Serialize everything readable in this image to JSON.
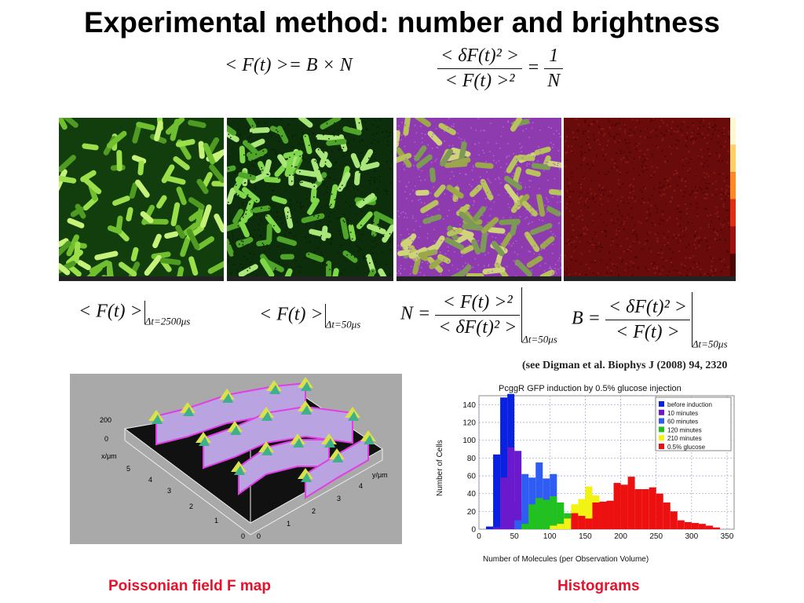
{
  "title": "Experimental method: number and brightness",
  "equations": {
    "eq1": {
      "lhs": "< F(t) >",
      "rhs": "= B × N"
    },
    "eq2": {
      "num": "< δF(t)² >",
      "den": "< F(t) >²",
      "eq": "=",
      "rnum": "1",
      "rden": "N"
    },
    "eq3": {
      "main": "< F(t) >",
      "sub": "Δt=2500μs"
    },
    "eq4": {
      "main": "< F(t) >",
      "sub": "Δt=50μs"
    },
    "eq5": {
      "lhs": "N =",
      "num": "< F(t) >²",
      "den": "< δF(t)² >",
      "sub": "Δt=50μs"
    },
    "eq6": {
      "lhs": "B =",
      "num": "< δF(t)² >",
      "den": "< F(t) >",
      "sub": "Δt=50μs"
    }
  },
  "reference": "(see Digman et al. Biophys J (2008) 94, 2320",
  "map3d": {
    "z_ticks": [
      "200",
      "0"
    ],
    "x_label": "x/μm",
    "x_ticks": [
      "5",
      "4",
      "3",
      "2",
      "1",
      "0"
    ],
    "y_label": "y/μm",
    "y_ticks": [
      "4",
      "3",
      "2",
      "1",
      "0"
    ]
  },
  "captions": {
    "left": "Poissonian field F map",
    "right": "Histograms"
  },
  "colors": {
    "caption": "#e8102a",
    "before": "#0a22e0",
    "m10": "#6a1acc",
    "m60": "#2f5cf2",
    "m120": "#22c21e",
    "m210": "#f3f312",
    "glucose": "#ec1010"
  },
  "chart_data": {
    "type": "bar",
    "title": "PcggR GFP induction by 0.5% glucose injection",
    "xlabel": "Number of Molecules (per Observation Volume)",
    "ylabel": "Number of Cells",
    "xlim": [
      0,
      360
    ],
    "ylim": [
      0,
      150
    ],
    "x_ticks": [
      0,
      50,
      100,
      150,
      200,
      250,
      300,
      350
    ],
    "y_ticks": [
      0,
      20,
      40,
      60,
      80,
      100,
      120,
      140
    ],
    "bin_width": 10,
    "grid": true,
    "legend_position": "top-right",
    "series": [
      {
        "name": "before induction",
        "color": "#0a22e0",
        "bins": [
          [
            10,
            3
          ],
          [
            20,
            84
          ],
          [
            30,
            148
          ],
          [
            40,
            152
          ],
          [
            50,
            30
          ],
          [
            60,
            2
          ]
        ]
      },
      {
        "name": "10 minutes",
        "color": "#6a1acc",
        "bins": [
          [
            20,
            2
          ],
          [
            30,
            58
          ],
          [
            40,
            92
          ],
          [
            50,
            88
          ],
          [
            60,
            20
          ],
          [
            70,
            3
          ]
        ]
      },
      {
        "name": "60 minutes",
        "color": "#2f5cf2",
        "bins": [
          [
            50,
            10
          ],
          [
            60,
            62
          ],
          [
            70,
            58
          ],
          [
            80,
            75
          ],
          [
            90,
            57
          ],
          [
            100,
            62
          ],
          [
            110,
            8
          ]
        ]
      },
      {
        "name": "120 minutes",
        "color": "#22c21e",
        "bins": [
          [
            60,
            6
          ],
          [
            70,
            28
          ],
          [
            80,
            35
          ],
          [
            90,
            33
          ],
          [
            100,
            37
          ],
          [
            110,
            30
          ],
          [
            120,
            18
          ],
          [
            130,
            10
          ]
        ]
      },
      {
        "name": "210 minutes",
        "color": "#f3f312",
        "bins": [
          [
            100,
            4
          ],
          [
            110,
            6
          ],
          [
            120,
            12
          ],
          [
            130,
            28
          ],
          [
            140,
            34
          ],
          [
            150,
            48
          ],
          [
            160,
            38
          ],
          [
            170,
            20
          ],
          [
            180,
            8
          ]
        ]
      },
      {
        "name": "0.5% glucose",
        "color": "#ec1010",
        "bins": [
          [
            130,
            18
          ],
          [
            140,
            15
          ],
          [
            150,
            12
          ],
          [
            160,
            30
          ],
          [
            170,
            31
          ],
          [
            180,
            32
          ],
          [
            190,
            52
          ],
          [
            200,
            50
          ],
          [
            210,
            59
          ],
          [
            220,
            45
          ],
          [
            230,
            45
          ],
          [
            240,
            47
          ],
          [
            250,
            40
          ],
          [
            260,
            30
          ],
          [
            270,
            20
          ],
          [
            280,
            10
          ],
          [
            290,
            8
          ],
          [
            300,
            7
          ],
          [
            310,
            6
          ],
          [
            320,
            4
          ],
          [
            330,
            2
          ]
        ]
      }
    ]
  }
}
